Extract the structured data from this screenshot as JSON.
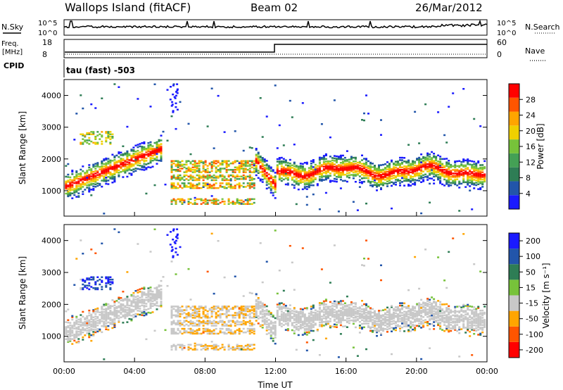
{
  "header": {
    "station": "Wallops Island (fitACF)",
    "beam": "Beam 02",
    "date": "26/Mar/2012"
  },
  "top_panels": {
    "noise": {
      "left_label": "N.Sky",
      "right_label": "N.Search",
      "left_ticks": [
        "10^5",
        "10^0"
      ],
      "right_ticks": [
        "10^5",
        "10^0"
      ]
    },
    "freq": {
      "left_label_1": "Freq.",
      "left_label_2": "[MHz]",
      "left_ticks": [
        "18",
        "8"
      ],
      "right_label": "Nave",
      "right_ticks": [
        "60",
        "0"
      ]
    },
    "cpid": {
      "label": "CPID",
      "text": "tau (fast) -503"
    }
  },
  "colors": {
    "power": [
      "#1a1aff",
      "#2255aa",
      "#2e7d55",
      "#44a055",
      "#77c23a",
      "#f0d000",
      "#ffa500",
      "#ff5500",
      "#ff0000"
    ],
    "velocity": [
      "#ff0000",
      "#ff5500",
      "#ffa500",
      "#c8c8c8",
      "#77c23a",
      "#2e7d55",
      "#2255aa",
      "#1a1aff"
    ]
  },
  "chart_data": [
    {
      "type": "heatmap",
      "name": "Power",
      "ylabel": "Slant Range [km]",
      "xlabel": "",
      "y_ticks": [
        "1000",
        "2000",
        "3000",
        "4000"
      ],
      "ylim": [
        200,
        4500
      ],
      "xlim": [
        0,
        24
      ],
      "colorbar": {
        "label": "Power [dB]",
        "ticks": [
          "4",
          "8",
          "12",
          "16",
          "20",
          "24",
          "28"
        ],
        "range": [
          0,
          32
        ]
      }
    },
    {
      "type": "heatmap",
      "name": "Velocity",
      "ylabel": "Slant Range [km]",
      "xlabel": "Time UT",
      "x_ticks": [
        "00:00",
        "04:00",
        "08:00",
        "12:00",
        "16:00",
        "20:00",
        "00:00"
      ],
      "y_ticks": [
        "1000",
        "2000",
        "3000",
        "4000"
      ],
      "ylim": [
        200,
        4500
      ],
      "xlim": [
        0,
        24
      ],
      "colorbar": {
        "label": "Velocity [m s⁻¹]",
        "ticks": [
          "200",
          "100",
          "50",
          "15",
          "-15",
          "-50",
          "-100",
          "-200"
        ]
      }
    }
  ]
}
